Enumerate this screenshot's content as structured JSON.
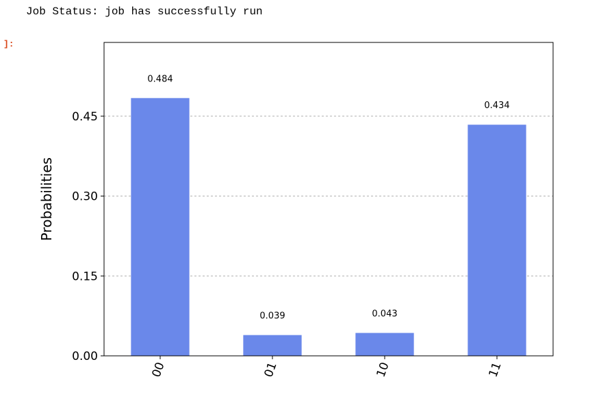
{
  "output": {
    "status_text": "Job Status: job has successfully run",
    "prompt_marker": "]:"
  },
  "chart_data": {
    "type": "bar",
    "categories": [
      "00",
      "01",
      "10",
      "11"
    ],
    "values": [
      0.484,
      0.039,
      0.043,
      0.434
    ],
    "value_labels": [
      "0.484",
      "0.039",
      "0.043",
      "0.434"
    ],
    "title": "",
    "xlabel": "",
    "ylabel": "Probabilities",
    "ylim": [
      0,
      0.5885
    ],
    "yticks": [
      0.0,
      0.15,
      0.3,
      0.45
    ],
    "ytick_labels": [
      "0.00",
      "0.15",
      "0.30",
      "0.45"
    ],
    "grid": "horizontal dashed",
    "bar_color": "#6a88ea",
    "xtick_rotation": "70 degrees"
  }
}
